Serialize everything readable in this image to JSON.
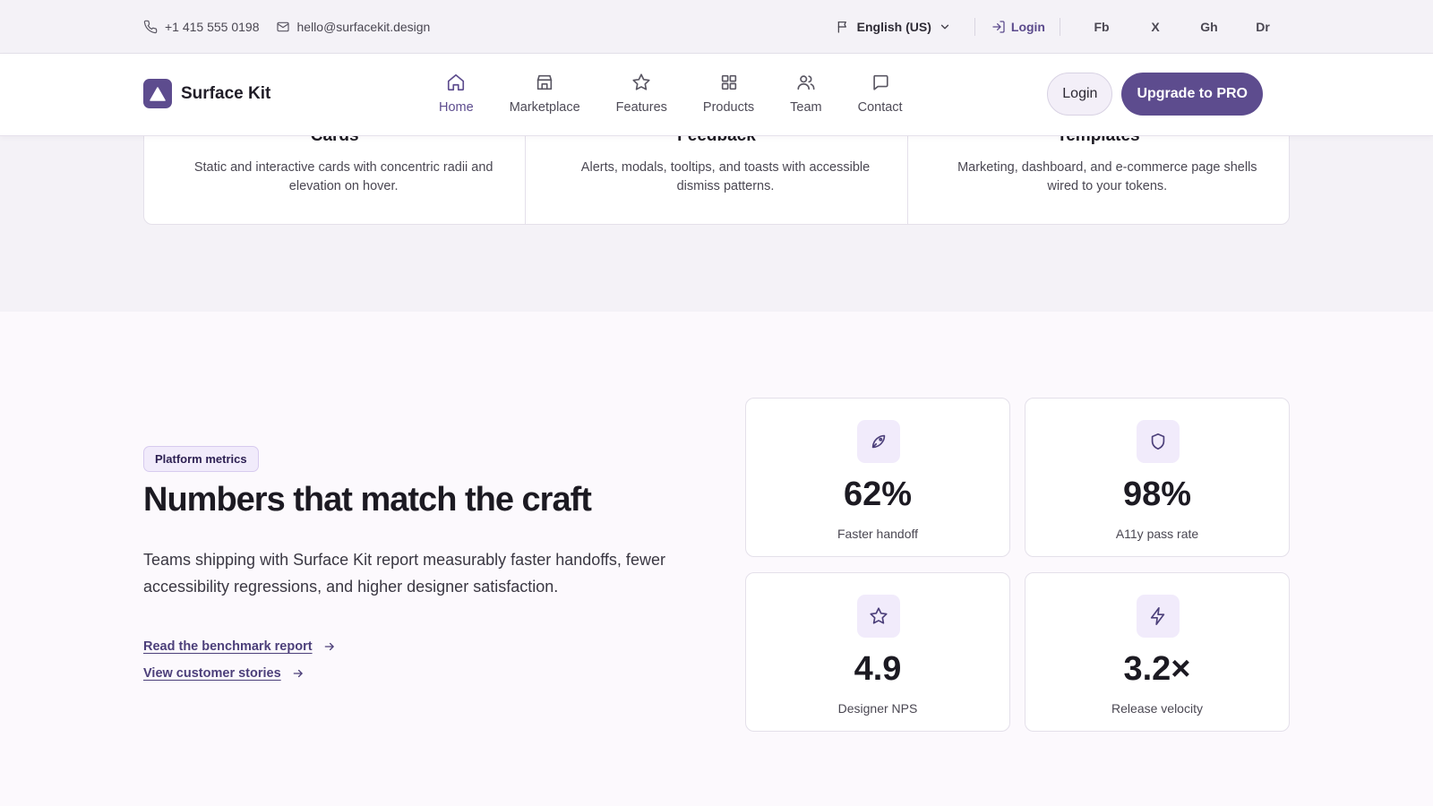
{
  "topbar": {
    "phone": "+1 415 555 0198",
    "email": "hello@surfacekit.design",
    "language": "English (US)",
    "login": "Login",
    "social": [
      "Fb",
      "X",
      "Gh",
      "Dr"
    ]
  },
  "nav": {
    "brand": "Surface Kit",
    "items": [
      {
        "label": "Home",
        "icon": "home-icon",
        "active": true
      },
      {
        "label": "Marketplace",
        "icon": "store-icon"
      },
      {
        "label": "Features",
        "icon": "star-icon"
      },
      {
        "label": "Products",
        "icon": "grid-icon"
      },
      {
        "label": "Team",
        "icon": "users-icon"
      },
      {
        "label": "Contact",
        "icon": "message-icon"
      }
    ],
    "login_button": "Login",
    "upgrade_button": "Upgrade to PRO"
  },
  "features": [
    {
      "title": "Cards",
      "desc": "Static and interactive cards with concentric radii and elevation on hover."
    },
    {
      "title": "Feedback",
      "desc": "Alerts, modals, tooltips, and toasts with accessible dismiss patterns."
    },
    {
      "title": "Templates",
      "desc": "Marketing, dashboard, and e-commerce page shells wired to your tokens."
    }
  ],
  "metrics": {
    "badge": "Platform metrics",
    "headline": "Numbers that match the craft",
    "lead": "Teams shipping with Surface Kit report measurably faster handoffs, fewer accessibility regressions, and higher designer satisfaction.",
    "links": [
      "Read the benchmark report",
      "View customer stories"
    ],
    "cards": [
      {
        "value": "62%",
        "label": "Faster handoff",
        "icon": "rocket-icon"
      },
      {
        "value": "98%",
        "label": "A11y pass rate",
        "icon": "shield-icon"
      },
      {
        "value": "4.9",
        "label": "Designer NPS",
        "icon": "star-icon"
      },
      {
        "value": "3.2×",
        "label": "Release velocity",
        "icon": "bolt-icon"
      }
    ]
  },
  "colors": {
    "accent": "#5d4c8e",
    "accent_soft": "#f1ebfb",
    "topbar_bg": "#f4f2f7",
    "page_bg": "#fcf9fd"
  }
}
